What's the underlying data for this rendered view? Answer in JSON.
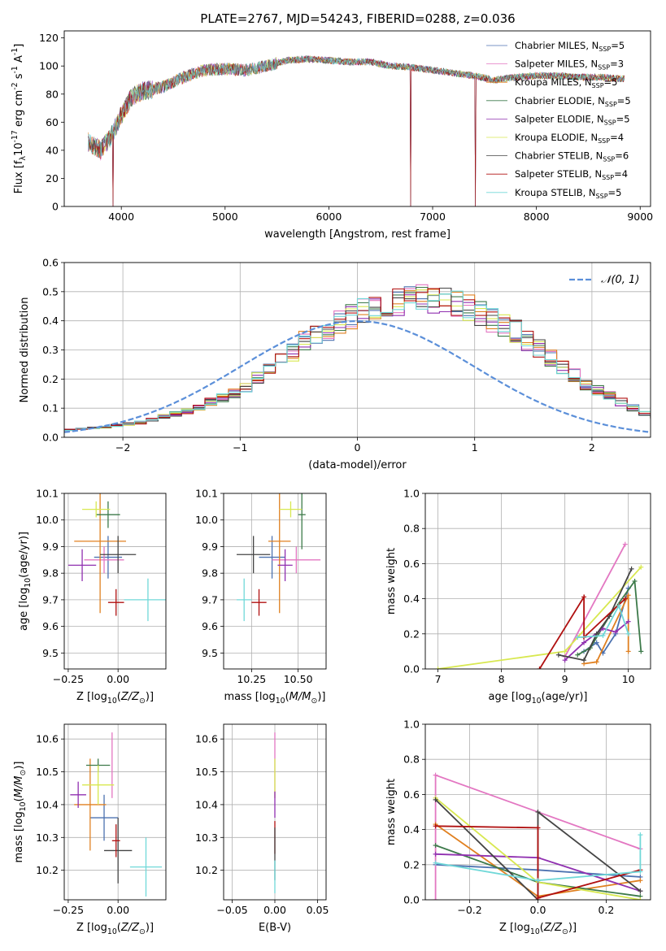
{
  "title": "PLATE=2767, MJD=54243, FIBERID=0288, z=0.036",
  "chart_data": [
    {
      "type": "line",
      "panel": "spectrum",
      "xlabel": "wavelength [Angstrom, rest frame]",
      "ylabel": "Flux [f$_\\lambda$10$^{-17}$ erg cm$^{-2}$ s$^{-1}$ A$^{-1}$]",
      "xlim": [
        3450,
        9100
      ],
      "ylim": [
        0,
        125
      ],
      "xticks": [
        4000,
        5000,
        6000,
        7000,
        8000,
        9000
      ],
      "yticks": [
        0,
        20,
        40,
        60,
        80,
        100,
        120
      ],
      "grid": false,
      "legend_position": "top-right",
      "series": [
        {
          "name": "Chabrier MILES, N",
          "sub": "SSP",
          "suffix": "=5",
          "color": "#4c72b0"
        },
        {
          "name": "Salpeter MILES, N",
          "sub": "SSP",
          "suffix": "=3",
          "color": "#e377c2"
        },
        {
          "name": "Kroupa MILES, N",
          "sub": "SSP",
          "suffix": "=5",
          "color": "#e08020"
        },
        {
          "name": "Chabrier ELODIE, N",
          "sub": "SSP",
          "suffix": "=5",
          "color": "#3d7a4a"
        },
        {
          "name": "Salpeter ELODIE, N",
          "sub": "SSP",
          "suffix": "=5",
          "color": "#9030b0"
        },
        {
          "name": "Kroupa ELODIE, N",
          "sub": "SSP",
          "suffix": "=4",
          "color": "#d8e850"
        },
        {
          "name": "Chabrier STELIB, N",
          "sub": "SSP",
          "suffix": "=6",
          "color": "#444444"
        },
        {
          "name": "Salpeter STELIB, N",
          "sub": "SSP",
          "suffix": "=4",
          "color": "#b01010"
        },
        {
          "name": "Kroupa STELIB, N",
          "sub": "SSP",
          "suffix": "=5",
          "color": "#70d8d8"
        }
      ],
      "continuum": [
        [
          3700,
          45
        ],
        [
          3800,
          40
        ],
        [
          3900,
          50
        ],
        [
          4000,
          65
        ],
        [
          4100,
          78
        ],
        [
          4200,
          82
        ],
        [
          4400,
          85
        ],
        [
          4600,
          92
        ],
        [
          4800,
          97
        ],
        [
          5000,
          98
        ],
        [
          5200,
          97
        ],
        [
          5400,
          100
        ],
        [
          5600,
          104
        ],
        [
          5800,
          105
        ],
        [
          6000,
          104
        ],
        [
          6200,
          103
        ],
        [
          6400,
          103
        ],
        [
          6600,
          100
        ],
        [
          6800,
          99
        ],
        [
          7000,
          97
        ],
        [
          7200,
          95
        ],
        [
          7400,
          93
        ],
        [
          7600,
          90
        ],
        [
          7800,
          92
        ],
        [
          8000,
          93
        ],
        [
          8200,
          93
        ],
        [
          8400,
          92
        ],
        [
          8600,
          92
        ],
        [
          8800,
          91
        ]
      ],
      "spectrum_range": [
        3680,
        8850
      ],
      "spectrum_dropouts": [
        3920,
        6790,
        7410
      ]
    },
    {
      "type": "step",
      "panel": "residuals",
      "xlabel": "(data-model)/error",
      "ylabel": "Normed distribution",
      "xlim": [
        -2.5,
        2.5
      ],
      "ylim": [
        0,
        0.6
      ],
      "xticks": [
        -2,
        -1,
        0,
        1,
        2
      ],
      "yticks": [
        0.0,
        0.1,
        0.2,
        0.3,
        0.4,
        0.5,
        0.6
      ],
      "grid": true,
      "gaussian_label": "𝒩(0, 1)",
      "gaussian_color": "#5b8fd9",
      "bin_width": 0.1,
      "hist_envelope": [
        0.025,
        0.028,
        0.031,
        0.035,
        0.04,
        0.045,
        0.05,
        0.06,
        0.07,
        0.08,
        0.09,
        0.1,
        0.12,
        0.135,
        0.15,
        0.17,
        0.2,
        0.23,
        0.26,
        0.29,
        0.33,
        0.35,
        0.37,
        0.39,
        0.41,
        0.43,
        0.44,
        0.45,
        0.46,
        0.47,
        0.48,
        0.47,
        0.46,
        0.45,
        0.44,
        0.42,
        0.4,
        0.38,
        0.36,
        0.33,
        0.3,
        0.27,
        0.24,
        0.21,
        0.18,
        0.16,
        0.14,
        0.12,
        0.1,
        0.08,
        0.07,
        0.06,
        0.05,
        0.045,
        0.04,
        0.035,
        0.03,
        0.028,
        0.025,
        0.022
      ],
      "legend_position": "top-right"
    },
    {
      "type": "scatter",
      "panel": "age-vs-Z",
      "xlabel": "Z [log$_{10}$($Z/Z_\\odot$)]",
      "ylabel": "age  [log$_{10}$($age/yr$)]",
      "xlim": [
        -0.27,
        0.24
      ],
      "ylim": [
        9.44,
        10.1
      ],
      "xticks": [
        -0.25,
        0.0
      ],
      "yticks": [
        9.5,
        9.6,
        9.7,
        9.8,
        9.9,
        10.0,
        10.1
      ],
      "grid": true,
      "points": [
        {
          "x": -0.05,
          "y": 9.86,
          "xerr": 0.07,
          "yerr": 0.08,
          "color": "#4c72b0"
        },
        {
          "x": -0.07,
          "y": 9.85,
          "xerr": 0.1,
          "yerr": 0.05,
          "color": "#e377c2"
        },
        {
          "x": -0.09,
          "y": 9.92,
          "xerr": 0.13,
          "yerr": 0.27,
          "color": "#e08020"
        },
        {
          "x": -0.05,
          "y": 10.02,
          "xerr": 0.06,
          "yerr": 0.05,
          "color": "#3d7a4a"
        },
        {
          "x": -0.18,
          "y": 9.83,
          "xerr": 0.07,
          "yerr": 0.06,
          "color": "#9030b0"
        },
        {
          "x": -0.11,
          "y": 10.04,
          "xerr": 0.07,
          "yerr": 0.03,
          "color": "#d8e850"
        },
        {
          "x": 0.0,
          "y": 9.87,
          "xerr": 0.09,
          "yerr": 0.07,
          "color": "#444444"
        },
        {
          "x": -0.01,
          "y": 9.69,
          "xerr": 0.04,
          "yerr": 0.05,
          "color": "#b01010"
        },
        {
          "x": 0.15,
          "y": 9.7,
          "xerr": 0.12,
          "yerr": 0.08,
          "color": "#70d8d8"
        }
      ]
    },
    {
      "type": "scatter",
      "panel": "age-vs-mass",
      "xlabel": "mass [log$_{10}$($M/M_\\odot$)]",
      "ylabel": "",
      "xlim": [
        10.1,
        10.65
      ],
      "ylim": [
        9.44,
        10.1
      ],
      "xticks": [
        10.25,
        10.5
      ],
      "yticks": [
        9.5,
        9.6,
        9.7,
        9.8,
        9.9,
        10.0,
        10.1
      ],
      "grid": true,
      "points": [
        {
          "x": 10.36,
          "y": 9.86,
          "xerr": 0.07,
          "yerr": 0.08,
          "color": "#4c72b0"
        },
        {
          "x": 10.49,
          "y": 9.85,
          "xerr": 0.13,
          "yerr": 0.05,
          "color": "#e377c2"
        },
        {
          "x": 10.4,
          "y": 9.92,
          "xerr": 0.06,
          "yerr": 0.27,
          "color": "#e08020"
        },
        {
          "x": 10.52,
          "y": 10.02,
          "xerr": 0.02,
          "yerr": 0.13,
          "color": "#3d7a4a"
        },
        {
          "x": 10.43,
          "y": 9.83,
          "xerr": 0.04,
          "yerr": 0.06,
          "color": "#9030b0"
        },
        {
          "x": 10.46,
          "y": 10.04,
          "xerr": 0.06,
          "yerr": 0.03,
          "color": "#d8e850"
        },
        {
          "x": 10.26,
          "y": 9.87,
          "xerr": 0.09,
          "yerr": 0.07,
          "color": "#444444"
        },
        {
          "x": 10.29,
          "y": 9.69,
          "xerr": 0.04,
          "yerr": 0.05,
          "color": "#b01010"
        },
        {
          "x": 10.21,
          "y": 9.7,
          "xerr": 0.04,
          "yerr": 0.08,
          "color": "#70d8d8"
        }
      ]
    },
    {
      "type": "line",
      "panel": "mass-weight-vs-age",
      "xlabel": "age  [log$_{10}$($age/yr$)]",
      "ylabel": "mass weight",
      "xlim": [
        6.8,
        10.35
      ],
      "ylim": [
        0.0,
        1.0
      ],
      "xticks": [
        7,
        8,
        9,
        10
      ],
      "yticks": [
        0.0,
        0.2,
        0.4,
        0.6,
        0.8,
        1.0
      ],
      "grid": true,
      "series": [
        {
          "color": "#4c72b0",
          "points": [
            [
              9.3,
              0.1
            ],
            [
              9.5,
              0.15
            ],
            [
              9.6,
              0.09
            ],
            [
              9.8,
              0.2
            ],
            [
              10.0,
              0.46
            ]
          ]
        },
        {
          "color": "#e377c2",
          "points": [
            [
              9.0,
              0.07
            ],
            [
              9.95,
              0.71
            ]
          ]
        },
        {
          "color": "#e08020",
          "points": [
            [
              9.3,
              0.03
            ],
            [
              9.5,
              0.04
            ],
            [
              10.0,
              0.42
            ],
            [
              10.0,
              0.1
            ]
          ]
        },
        {
          "color": "#3d7a4a",
          "points": [
            [
              9.2,
              0.08
            ],
            [
              9.4,
              0.12
            ],
            [
              9.7,
              0.3
            ],
            [
              10.1,
              0.5
            ],
            [
              10.2,
              0.1
            ]
          ]
        },
        {
          "color": "#9030b0",
          "points": [
            [
              9.0,
              0.05
            ],
            [
              9.3,
              0.15
            ],
            [
              9.6,
              0.23
            ],
            [
              9.8,
              0.21
            ],
            [
              10.0,
              0.27
            ]
          ]
        },
        {
          "color": "#d8e850",
          "points": [
            [
              7.0,
              0.0
            ],
            [
              9.0,
              0.1
            ],
            [
              10.2,
              0.58
            ]
          ]
        },
        {
          "color": "#444444",
          "points": [
            [
              8.9,
              0.08
            ],
            [
              9.3,
              0.05
            ],
            [
              9.5,
              0.2
            ],
            [
              9.7,
              0.3
            ],
            [
              10.05,
              0.57
            ]
          ]
        },
        {
          "color": "#b01010",
          "points": [
            [
              8.6,
              0.0
            ],
            [
              9.3,
              0.41
            ],
            [
              9.3,
              0.18
            ],
            [
              9.95,
              0.4
            ]
          ]
        },
        {
          "color": "#70d8d8",
          "points": [
            [
              9.2,
              0.18
            ],
            [
              9.6,
              0.19
            ],
            [
              9.85,
              0.36
            ],
            [
              10.0,
              0.2
            ]
          ]
        }
      ]
    },
    {
      "type": "scatter",
      "panel": "mass-vs-Z",
      "xlabel": "Z [log$_{10}$($Z/Z_\\odot$)]",
      "ylabel": "mass [log$_{10}$($M/M_\\odot$)]",
      "xlim": [
        -0.27,
        0.24
      ],
      "ylim": [
        10.11,
        10.645
      ],
      "xticks": [
        -0.25,
        0.0
      ],
      "yticks": [
        10.2,
        10.3,
        10.4,
        10.5,
        10.6
      ],
      "grid": true,
      "points": [
        {
          "x": -0.07,
          "y": 10.36,
          "xerr": 0.07,
          "yerr": 0.07,
          "color": "#4c72b0"
        },
        {
          "x": -0.03,
          "y": 10.52,
          "xerr": 0.0,
          "yerr": 0.1,
          "color": "#e377c2"
        },
        {
          "x": -0.14,
          "y": 10.4,
          "xerr": 0.08,
          "yerr": 0.14,
          "color": "#e08020"
        },
        {
          "x": -0.1,
          "y": 10.52,
          "xerr": 0.06,
          "yerr": 0.02,
          "color": "#3d7a4a"
        },
        {
          "x": -0.2,
          "y": 10.43,
          "xerr": 0.04,
          "yerr": 0.04,
          "color": "#9030b0"
        },
        {
          "x": -0.1,
          "y": 10.46,
          "xerr": 0.08,
          "yerr": 0.06,
          "color": "#d8e850"
        },
        {
          "x": 0.0,
          "y": 10.26,
          "xerr": 0.07,
          "yerr": 0.1,
          "color": "#444444"
        },
        {
          "x": -0.01,
          "y": 10.29,
          "xerr": 0.02,
          "yerr": 0.05,
          "color": "#b01010"
        },
        {
          "x": 0.14,
          "y": 10.21,
          "xerr": 0.08,
          "yerr": 0.09,
          "color": "#70d8d8"
        }
      ]
    },
    {
      "type": "scatter",
      "panel": "mass-vs-ebv",
      "xlabel": "E(B-V)",
      "ylabel": "",
      "xlim": [
        -0.06,
        0.06
      ],
      "ylim": [
        10.11,
        10.645
      ],
      "xticks": [
        -0.05,
        0.0,
        0.05
      ],
      "yticks": [
        10.2,
        10.3,
        10.4,
        10.5,
        10.6
      ],
      "grid": true,
      "points": [
        {
          "x": 0.0,
          "y": 10.52,
          "xerr": 0.0,
          "yerr": 0.1,
          "color": "#e377c2"
        },
        {
          "x": 0.0,
          "y": 10.48,
          "xerr": 0.0,
          "yerr": 0.06,
          "color": "#d8e850"
        },
        {
          "x": 0.0,
          "y": 10.4,
          "xerr": 0.0,
          "yerr": 0.04,
          "color": "#9030b0"
        },
        {
          "x": 0.0,
          "y": 10.3,
          "xerr": 0.0,
          "yerr": 0.05,
          "color": "#b01010"
        },
        {
          "x": 0.0,
          "y": 10.25,
          "xerr": 0.0,
          "yerr": 0.08,
          "color": "#444444"
        },
        {
          "x": 0.0,
          "y": 10.18,
          "xerr": 0.0,
          "yerr": 0.05,
          "color": "#70d8d8"
        }
      ]
    },
    {
      "type": "line",
      "panel": "mass-weight-vs-Z",
      "xlabel": "Z [log$_{10}$($Z/Z_\\odot$)]",
      "ylabel": "mass weight",
      "xlim": [
        -0.33,
        0.33
      ],
      "ylim": [
        0.0,
        1.0
      ],
      "xticks": [
        -0.2,
        0.0,
        0.2
      ],
      "yticks": [
        0.0,
        0.2,
        0.4,
        0.6,
        0.8,
        1.0
      ],
      "grid": true,
      "series": [
        {
          "color": "#4c72b0",
          "points": [
            [
              -0.3,
              0.2
            ],
            [
              0.0,
              0.17
            ],
            [
              0.3,
              0.13
            ]
          ]
        },
        {
          "color": "#e377c2",
          "points": [
            [
              -0.3,
              0.0
            ],
            [
              -0.3,
              0.71
            ],
            [
              0.3,
              0.29
            ]
          ]
        },
        {
          "color": "#e08020",
          "points": [
            [
              -0.3,
              0.43
            ],
            [
              0.0,
              0.02
            ],
            [
              0.3,
              0.11
            ]
          ]
        },
        {
          "color": "#3d7a4a",
          "points": [
            [
              -0.3,
              0.31
            ],
            [
              0.0,
              0.1
            ],
            [
              0.3,
              0.02
            ]
          ]
        },
        {
          "color": "#9030b0",
          "points": [
            [
              -0.3,
              0.26
            ],
            [
              0.0,
              0.24
            ],
            [
              0.3,
              0.05
            ]
          ]
        },
        {
          "color": "#d8e850",
          "points": [
            [
              -0.3,
              0.58
            ],
            [
              0.0,
              0.1
            ],
            [
              0.3,
              0.0
            ]
          ]
        },
        {
          "color": "#444444",
          "points": [
            [
              -0.3,
              0.57
            ],
            [
              0.0,
              0.0
            ],
            [
              0.0,
              0.5
            ],
            [
              0.3,
              0.05
            ]
          ]
        },
        {
          "color": "#b01010",
          "points": [
            [
              -0.3,
              0.42
            ],
            [
              0.0,
              0.41
            ],
            [
              0.0,
              0.01
            ],
            [
              0.3,
              0.17
            ]
          ]
        },
        {
          "color": "#70d8d8",
          "points": [
            [
              -0.3,
              0.21
            ],
            [
              0.0,
              0.11
            ],
            [
              0.3,
              0.16
            ],
            [
              0.3,
              0.37
            ]
          ]
        }
      ]
    }
  ]
}
